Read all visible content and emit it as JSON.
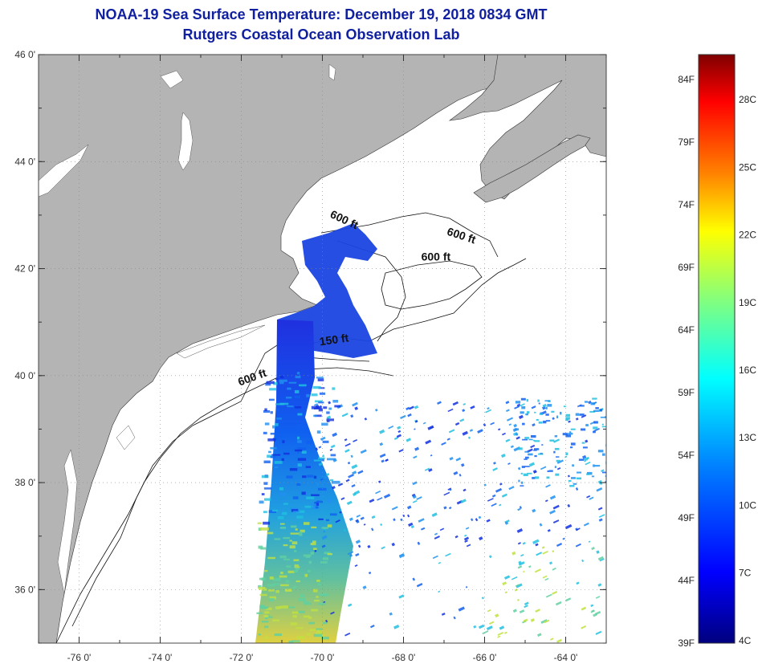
{
  "title": "NOAA-19 Sea Surface Temperature:  December 19, 2018 0834 GMT",
  "subtitle": "Rutgers Coastal Ocean Observation Lab",
  "map": {
    "lon_range": [
      -77,
      -63
    ],
    "lat_range": [
      35,
      46
    ],
    "lat_ticks": [
      {
        "value": 46,
        "label": "46 0'"
      },
      {
        "value": 44,
        "label": "44 0'"
      },
      {
        "value": 42,
        "label": "42 0'"
      },
      {
        "value": 40,
        "label": "40 0'"
      },
      {
        "value": 38,
        "label": "38 0'"
      },
      {
        "value": 36,
        "label": "36 0'"
      }
    ],
    "lon_ticks": [
      {
        "value": -76,
        "label": "-76 0'"
      },
      {
        "value": -74,
        "label": "-74 0'"
      },
      {
        "value": -72,
        "label": "-72 0'"
      },
      {
        "value": -70,
        "label": "-70 0'"
      },
      {
        "value": -68,
        "label": "-68 0'"
      },
      {
        "value": -66,
        "label": "-66 0'"
      },
      {
        "value": -64,
        "label": "-64 0'"
      }
    ],
    "grid": "dotted",
    "land_color": "#b4b4b4",
    "contour_labels": [
      {
        "text": "600 ft",
        "lon": -69.5,
        "lat": 42.85,
        "angle": 25
      },
      {
        "text": "600 ft",
        "lon": -66.6,
        "lat": 42.55,
        "angle": 18
      },
      {
        "text": "600 ft",
        "lon": -67.2,
        "lat": 42.15,
        "angle": 0
      },
      {
        "text": "150 ft",
        "lon": -69.7,
        "lat": 40.6,
        "angle": -8
      },
      {
        "text": "600 ft",
        "lon": -71.7,
        "lat": 39.9,
        "angle": -20
      }
    ]
  },
  "colorbar": {
    "range_f": [
      39,
      86
    ],
    "colors": [
      "#00007f",
      "#0000ff",
      "#0080ff",
      "#00ffff",
      "#80ff80",
      "#ffff00",
      "#ff8000",
      "#ff0000",
      "#7f0000"
    ],
    "f_labels": [
      "84F",
      "79F",
      "74F",
      "69F",
      "64F",
      "59F",
      "54F",
      "49F",
      "44F",
      "39F"
    ],
    "c_labels": [
      "28C",
      "25C",
      "22C",
      "19C",
      "16C",
      "13C",
      "10C",
      "7C",
      "4C"
    ]
  }
}
